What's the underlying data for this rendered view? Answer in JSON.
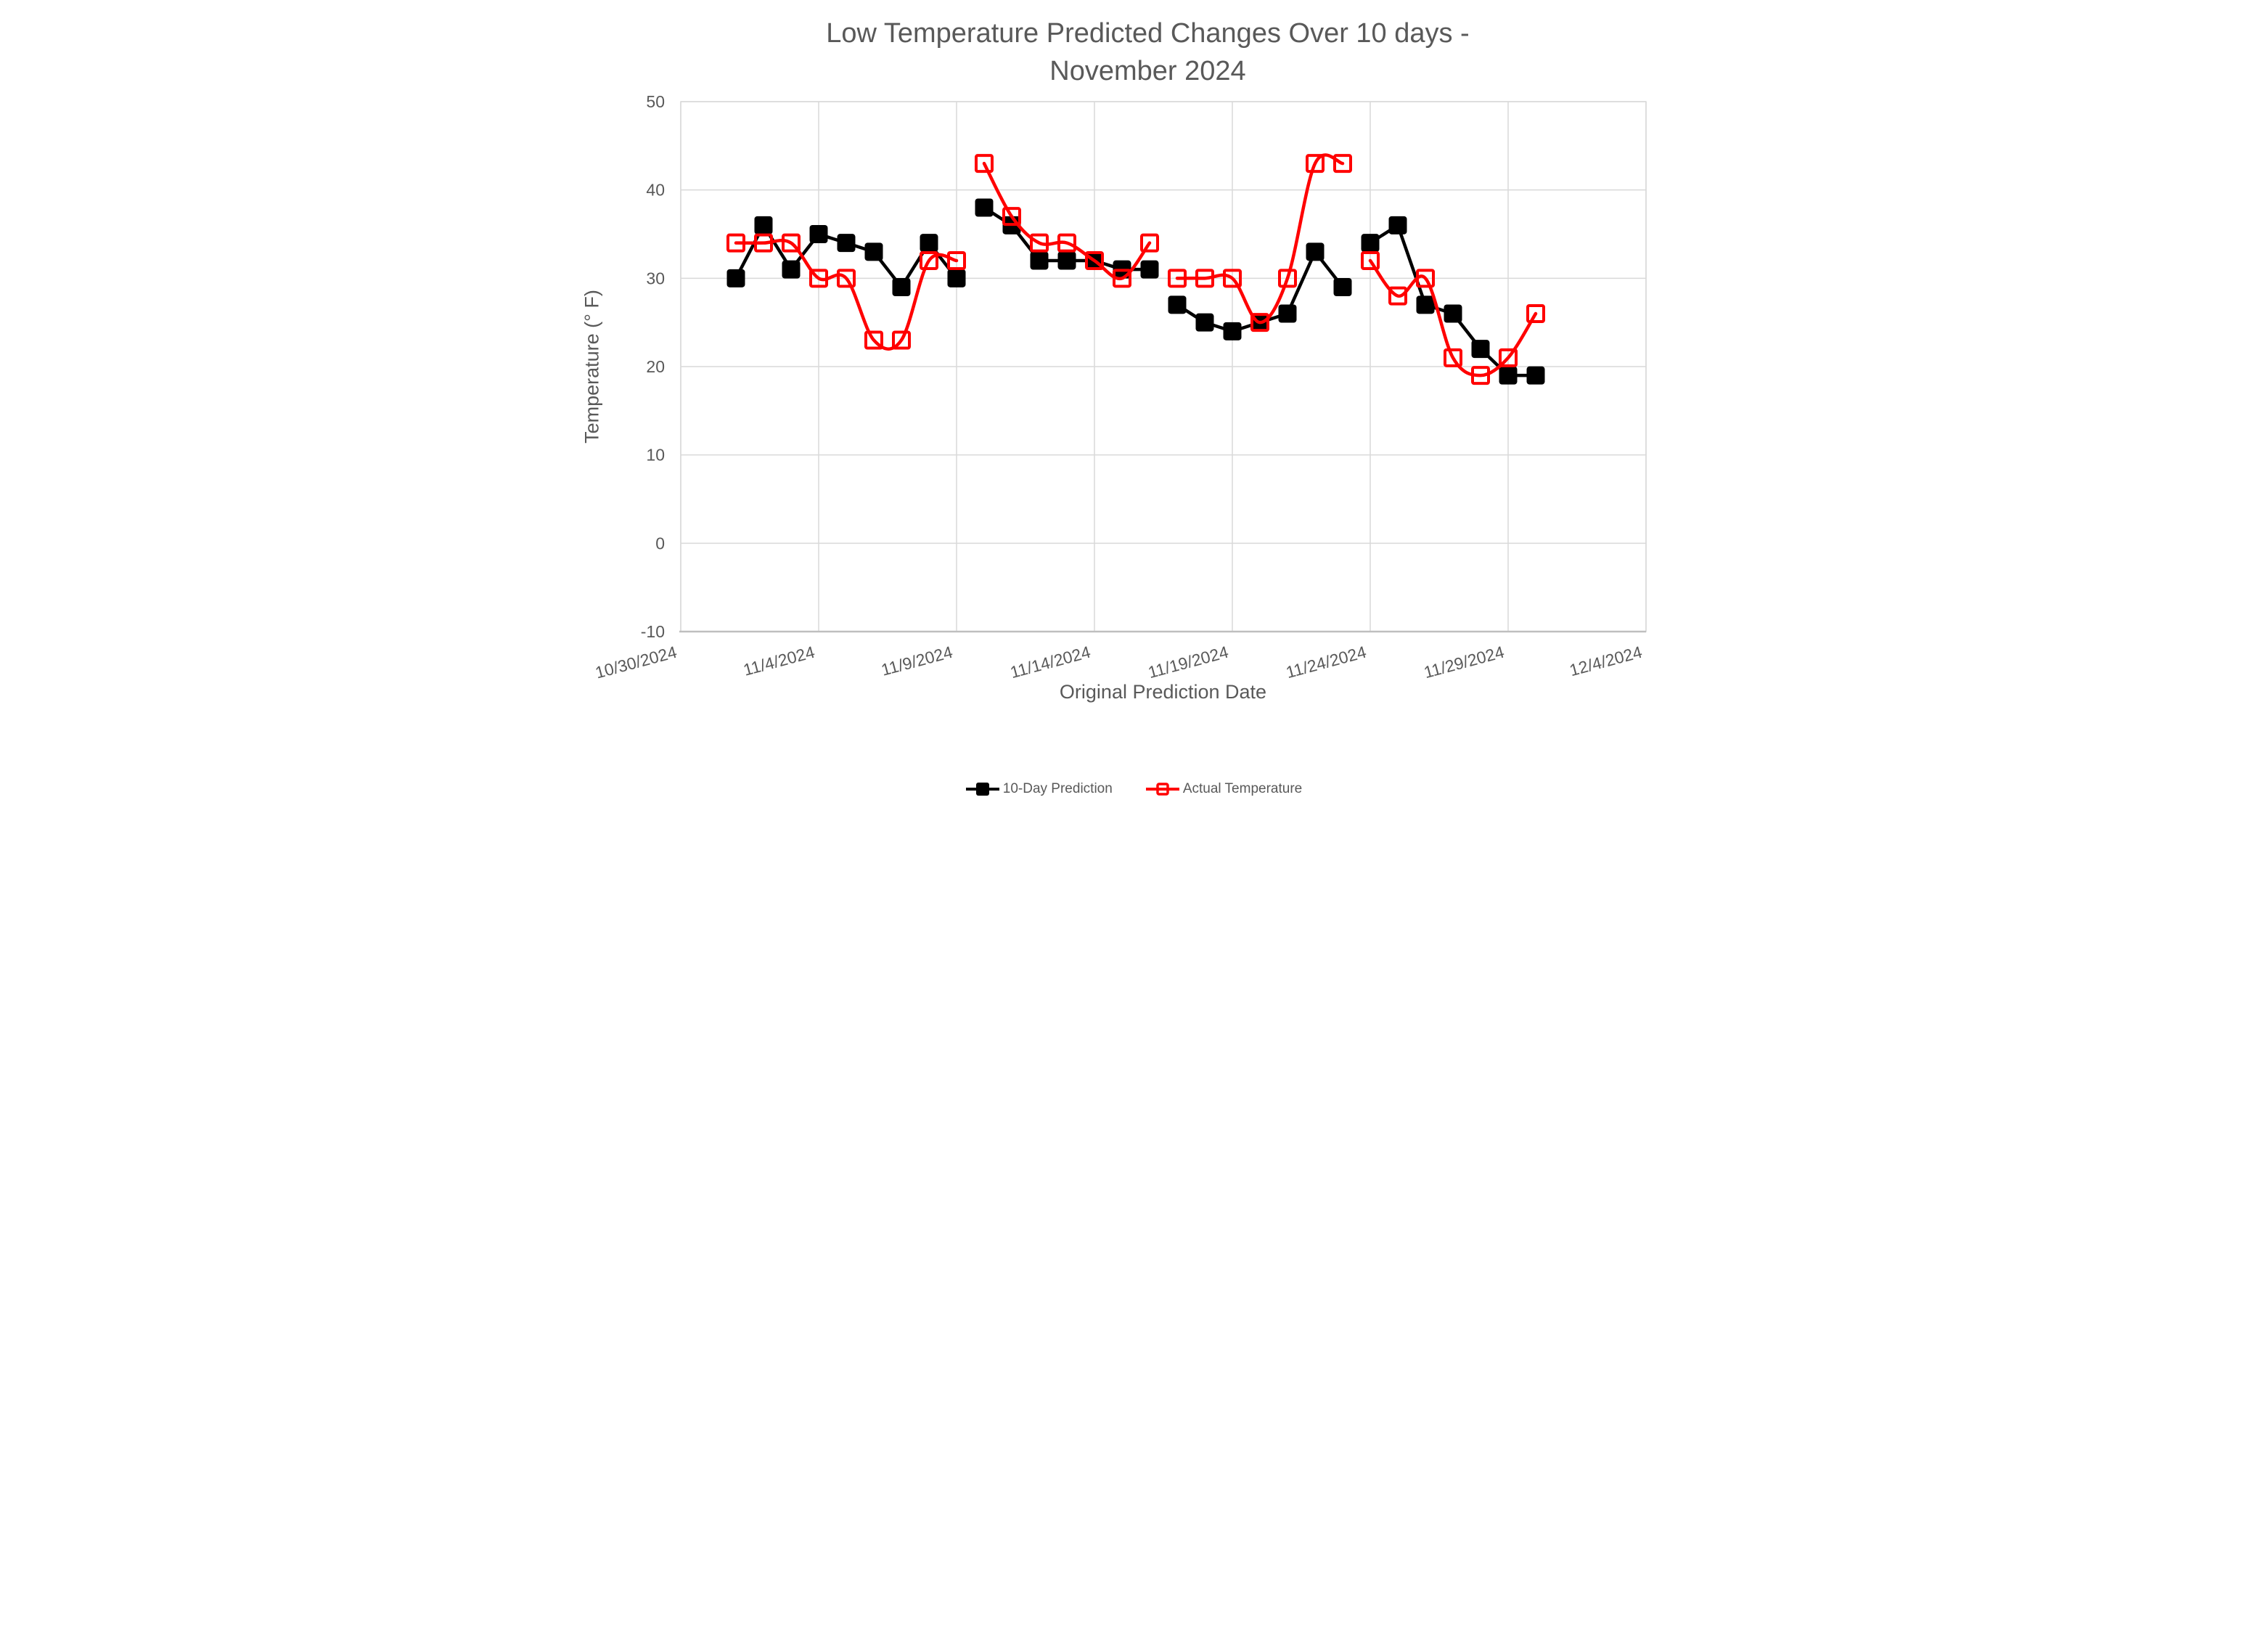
{
  "title": {
    "line1": "Low Temperature Predicted Changes Over 10 days -",
    "line2": "November 2024"
  },
  "axes": {
    "x": {
      "title": "Original Prediction Date"
    },
    "y": {
      "title": "Temperature (° F)"
    }
  },
  "colors": {
    "text": "#595959",
    "gridline": "#D9D9D9",
    "axis_line": "#BFBFBF",
    "background": "#FFFFFF",
    "prediction_series": "#000000",
    "actual_series": "#FF0000"
  },
  "chart_data": {
    "type": "line",
    "title": "Low Temperature Predicted Changes Over 10 days - November 2024",
    "xlabel": "Original Prediction Date",
    "ylabel": "Temperature (° F)",
    "ylim": [
      -10,
      50
    ],
    "y_ticks": [
      50,
      40,
      30,
      20,
      10,
      0,
      -10
    ],
    "x_ticks": [
      "10/30/2024",
      "11/4/2024",
      "11/9/2024",
      "11/14/2024",
      "11/19/2024",
      "11/24/2024",
      "11/29/2024",
      "12/4/2024"
    ],
    "x_range": [
      "10/30/2024",
      "12/4/2024"
    ],
    "grid": true,
    "legend_position": "bottom-center",
    "series": [
      {
        "id": "prediction",
        "name": "10-Day Prediction",
        "color": "#000000",
        "marker": "filled-square",
        "line_style": "straight",
        "segments": [
          [
            {
              "date": "11/1/2024",
              "value": 30
            },
            {
              "date": "11/2/2024",
              "value": 36
            },
            {
              "date": "11/3/2024",
              "value": 31
            },
            {
              "date": "11/4/2024",
              "value": 35
            },
            {
              "date": "11/5/2024",
              "value": 34
            },
            {
              "date": "11/6/2024",
              "value": 33
            },
            {
              "date": "11/7/2024",
              "value": 29
            },
            {
              "date": "11/8/2024",
              "value": 34
            },
            {
              "date": "11/9/2024",
              "value": 30
            }
          ],
          [
            {
              "date": "11/10/2024",
              "value": 38
            },
            {
              "date": "11/11/2024",
              "value": 36
            },
            {
              "date": "11/12/2024",
              "value": 32
            },
            {
              "date": "11/13/2024",
              "value": 32
            },
            {
              "date": "11/14/2024",
              "value": 32
            },
            {
              "date": "11/15/2024",
              "value": 31
            },
            {
              "date": "11/16/2024",
              "value": 31
            }
          ],
          [
            {
              "date": "11/17/2024",
              "value": 27
            },
            {
              "date": "11/18/2024",
              "value": 25
            },
            {
              "date": "11/19/2024",
              "value": 24
            },
            {
              "date": "11/20/2024",
              "value": 25
            },
            {
              "date": "11/21/2024",
              "value": 26
            },
            {
              "date": "11/22/2024",
              "value": 33
            },
            {
              "date": "11/23/2024",
              "value": 29
            }
          ],
          [
            {
              "date": "11/24/2024",
              "value": 34
            },
            {
              "date": "11/25/2024",
              "value": 36
            },
            {
              "date": "11/26/2024",
              "value": 27
            },
            {
              "date": "11/27/2024",
              "value": 26
            },
            {
              "date": "11/28/2024",
              "value": 22
            },
            {
              "date": "11/29/2024",
              "value": 19
            },
            {
              "date": "11/30/2024",
              "value": 19
            }
          ]
        ]
      },
      {
        "id": "actual",
        "name": "Actual Temperature",
        "color": "#FF0000",
        "marker": "open-square",
        "line_style": "smooth",
        "segments": [
          [
            {
              "date": "11/1/2024",
              "value": 34
            },
            {
              "date": "11/2/2024",
              "value": 34
            },
            {
              "date": "11/3/2024",
              "value": 34
            },
            {
              "date": "11/4/2024",
              "value": 30
            },
            {
              "date": "11/5/2024",
              "value": 30
            },
            {
              "date": "11/6/2024",
              "value": 23
            },
            {
              "date": "11/7/2024",
              "value": 23
            },
            {
              "date": "11/8/2024",
              "value": 32
            },
            {
              "date": "11/9/2024",
              "value": 32
            }
          ],
          [
            {
              "date": "11/10/2024",
              "value": 43
            },
            {
              "date": "11/11/2024",
              "value": 37
            },
            {
              "date": "11/12/2024",
              "value": 34
            },
            {
              "date": "11/13/2024",
              "value": 34
            },
            {
              "date": "11/14/2024",
              "value": 32
            },
            {
              "date": "11/15/2024",
              "value": 30
            },
            {
              "date": "11/16/2024",
              "value": 34
            }
          ],
          [
            {
              "date": "11/17/2024",
              "value": 30
            },
            {
              "date": "11/18/2024",
              "value": 30
            },
            {
              "date": "11/19/2024",
              "value": 30
            },
            {
              "date": "11/20/2024",
              "value": 25
            },
            {
              "date": "11/21/2024",
              "value": 30
            },
            {
              "date": "11/22/2024",
              "value": 43
            },
            {
              "date": "11/23/2024",
              "value": 43
            }
          ],
          [
            {
              "date": "11/24/2024",
              "value": 32
            },
            {
              "date": "11/25/2024",
              "value": 28
            },
            {
              "date": "11/26/2024",
              "value": 30
            },
            {
              "date": "11/27/2024",
              "value": 21
            },
            {
              "date": "11/28/2024",
              "value": 19
            },
            {
              "date": "11/29/2024",
              "value": 21
            },
            {
              "date": "11/30/2024",
              "value": 26
            }
          ]
        ]
      }
    ]
  }
}
